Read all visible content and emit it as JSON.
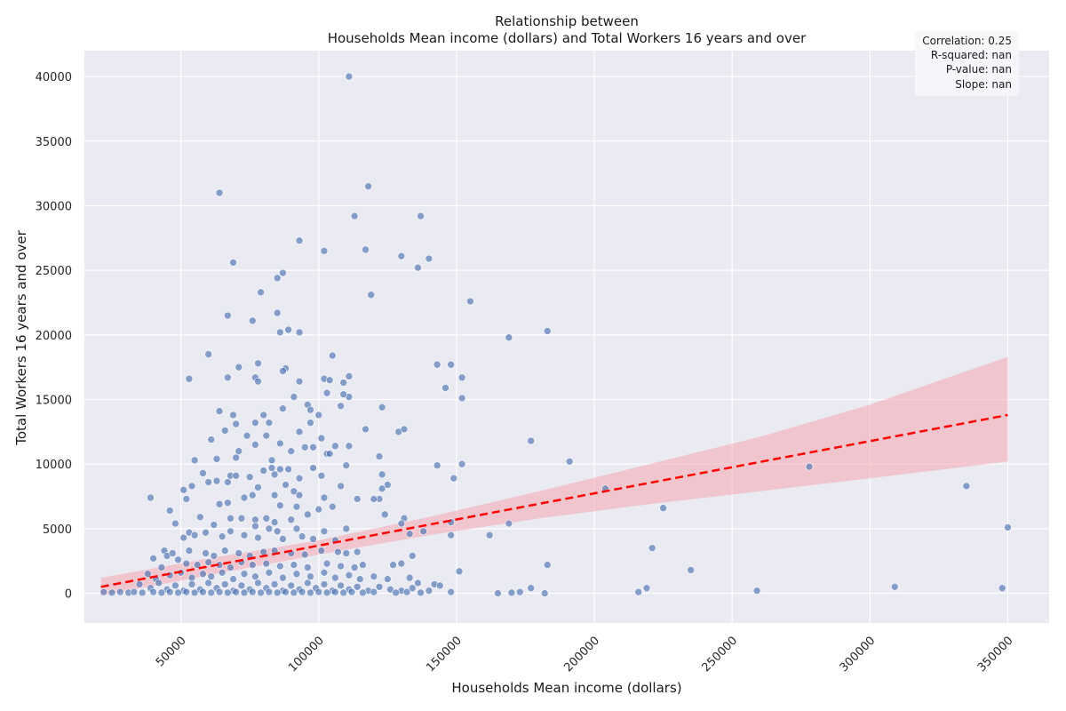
{
  "chart_data": {
    "type": "scatter",
    "title_line1": "Relationship between",
    "title_line2": "Households Mean income (dollars) and Total Workers 16 years and over",
    "xlabel": "Households Mean income (dollars)",
    "ylabel": "Total Workers 16 years and over",
    "xlim": [
      15000,
      365000
    ],
    "ylim": [
      -2300,
      42000
    ],
    "xticks": [
      50000,
      100000,
      150000,
      200000,
      250000,
      300000,
      350000
    ],
    "yticks": [
      0,
      5000,
      10000,
      15000,
      20000,
      25000,
      30000,
      35000,
      40000
    ],
    "grid": true,
    "stats": [
      "Correlation: 0.25",
      "R-squared: nan",
      "P-value: nan",
      "Slope: nan"
    ],
    "stats_position": "top-right",
    "colors": {
      "points": "#4c72b0",
      "regression_line": "#ff0000",
      "confidence_band": "#f4a6b1",
      "plot_background": "#eaeaf2",
      "grid": "#ffffff"
    },
    "regression": {
      "x": [
        21000,
        350000
      ],
      "y": [
        500,
        13800
      ]
    },
    "confidence_band": [
      {
        "x": 21000,
        "lo": -200,
        "hi": 1200
      },
      {
        "x": 60000,
        "lo": 1400,
        "hi": 2700
      },
      {
        "x": 100000,
        "lo": 3000,
        "hi": 4100
      },
      {
        "x": 140000,
        "lo": 4500,
        "hi": 5900
      },
      {
        "x": 180000,
        "lo": 5800,
        "hi": 7900
      },
      {
        "x": 220000,
        "lo": 6900,
        "hi": 10000
      },
      {
        "x": 260000,
        "lo": 7900,
        "hi": 12100
      },
      {
        "x": 300000,
        "lo": 8900,
        "hi": 14600
      },
      {
        "x": 350000,
        "lo": 10200,
        "hi": 18300
      }
    ],
    "points": [
      [
        111000,
        40000
      ],
      [
        64000,
        31000
      ],
      [
        118000,
        31500
      ],
      [
        113000,
        29200
      ],
      [
        137000,
        29200
      ],
      [
        93000,
        27300
      ],
      [
        69000,
        25600
      ],
      [
        102000,
        26500
      ],
      [
        117000,
        26600
      ],
      [
        130000,
        26100
      ],
      [
        140000,
        25900
      ],
      [
        136000,
        25200
      ],
      [
        87000,
        24800
      ],
      [
        85000,
        24400
      ],
      [
        79000,
        23300
      ],
      [
        119000,
        23100
      ],
      [
        155000,
        22600
      ],
      [
        85000,
        21700
      ],
      [
        67000,
        21500
      ],
      [
        76000,
        21100
      ],
      [
        89000,
        20400
      ],
      [
        86000,
        20200
      ],
      [
        93000,
        20200
      ],
      [
        169000,
        19800
      ],
      [
        183000,
        20300
      ],
      [
        60000,
        18500
      ],
      [
        105000,
        18400
      ],
      [
        78000,
        17800
      ],
      [
        71000,
        17500
      ],
      [
        88000,
        17400
      ],
      [
        87000,
        17200
      ],
      [
        143000,
        17700
      ],
      [
        148000,
        17700
      ],
      [
        152000,
        16700
      ],
      [
        53000,
        16600
      ],
      [
        67000,
        16700
      ],
      [
        77000,
        16700
      ],
      [
        102000,
        16600
      ],
      [
        104000,
        16500
      ],
      [
        111000,
        16800
      ],
      [
        109000,
        16300
      ],
      [
        78000,
        16400
      ],
      [
        146000,
        15900
      ],
      [
        93000,
        16400
      ],
      [
        111000,
        15200
      ],
      [
        103000,
        15500
      ],
      [
        91000,
        15200
      ],
      [
        152000,
        15100
      ],
      [
        109000,
        15400
      ],
      [
        96000,
        14600
      ],
      [
        108000,
        14500
      ],
      [
        123000,
        14400
      ],
      [
        64000,
        14100
      ],
      [
        87000,
        14300
      ],
      [
        97000,
        14200
      ],
      [
        69000,
        13800
      ],
      [
        80000,
        13800
      ],
      [
        100000,
        13800
      ],
      [
        82000,
        13200
      ],
      [
        70000,
        13100
      ],
      [
        77000,
        13200
      ],
      [
        97000,
        13200
      ],
      [
        66000,
        12600
      ],
      [
        74000,
        12200
      ],
      [
        81000,
        12200
      ],
      [
        93000,
        12500
      ],
      [
        117000,
        12700
      ],
      [
        129000,
        12500
      ],
      [
        131000,
        12700
      ],
      [
        177000,
        11800
      ],
      [
        61000,
        11900
      ],
      [
        77000,
        11500
      ],
      [
        86000,
        11600
      ],
      [
        95000,
        11300
      ],
      [
        98000,
        11300
      ],
      [
        101000,
        12000
      ],
      [
        106000,
        11400
      ],
      [
        111000,
        11400
      ],
      [
        71000,
        11000
      ],
      [
        90000,
        11000
      ],
      [
        103000,
        10800
      ],
      [
        104000,
        10800
      ],
      [
        63000,
        10400
      ],
      [
        70000,
        10500
      ],
      [
        55000,
        10300
      ],
      [
        83000,
        10300
      ],
      [
        122000,
        10600
      ],
      [
        191000,
        10200
      ],
      [
        143000,
        9900
      ],
      [
        152000,
        10000
      ],
      [
        110000,
        9900
      ],
      [
        86000,
        9600
      ],
      [
        89000,
        9600
      ],
      [
        83000,
        9700
      ],
      [
        98000,
        9700
      ],
      [
        58000,
        9300
      ],
      [
        80000,
        9500
      ],
      [
        101000,
        9100
      ],
      [
        75000,
        9000
      ],
      [
        68000,
        9100
      ],
      [
        70000,
        9100
      ],
      [
        123000,
        9200
      ],
      [
        149000,
        8900
      ],
      [
        93000,
        8900
      ],
      [
        84000,
        9200
      ],
      [
        60000,
        8600
      ],
      [
        63000,
        8700
      ],
      [
        54000,
        8300
      ],
      [
        51000,
        8000
      ],
      [
        67000,
        8600
      ],
      [
        78000,
        8200
      ],
      [
        88000,
        8400
      ],
      [
        91000,
        7900
      ],
      [
        108000,
        8300
      ],
      [
        125000,
        8400
      ],
      [
        123000,
        8100
      ],
      [
        204000,
        8100
      ],
      [
        278000,
        9800
      ],
      [
        335000,
        8300
      ],
      [
        39000,
        7400
      ],
      [
        52000,
        7300
      ],
      [
        73000,
        7400
      ],
      [
        76000,
        7600
      ],
      [
        84000,
        7600
      ],
      [
        93000,
        7600
      ],
      [
        102000,
        7400
      ],
      [
        114000,
        7300
      ],
      [
        122000,
        7300
      ],
      [
        67000,
        7000
      ],
      [
        64000,
        6900
      ],
      [
        86000,
        6800
      ],
      [
        92000,
        6700
      ],
      [
        100000,
        6500
      ],
      [
        105000,
        6700
      ],
      [
        46000,
        6400
      ],
      [
        120000,
        7300
      ],
      [
        225000,
        6600
      ],
      [
        57000,
        5900
      ],
      [
        77000,
        5700
      ],
      [
        81000,
        5800
      ],
      [
        90000,
        5700
      ],
      [
        84000,
        5500
      ],
      [
        68000,
        5800
      ],
      [
        72000,
        5800
      ],
      [
        96000,
        6100
      ],
      [
        124000,
        6100
      ],
      [
        131000,
        5800
      ],
      [
        130000,
        5400
      ],
      [
        169000,
        5400
      ],
      [
        148000,
        5500
      ],
      [
        48000,
        5400
      ],
      [
        62000,
        5300
      ],
      [
        77000,
        5200
      ],
      [
        82000,
        5000
      ],
      [
        85000,
        4800
      ],
      [
        92000,
        5000
      ],
      [
        102000,
        4800
      ],
      [
        110000,
        5000
      ],
      [
        133000,
        4600
      ],
      [
        138000,
        4800
      ],
      [
        148000,
        4500
      ],
      [
        162000,
        4500
      ],
      [
        53000,
        4700
      ],
      [
        55000,
        4500
      ],
      [
        59000,
        4700
      ],
      [
        65000,
        4400
      ],
      [
        68000,
        4800
      ],
      [
        73000,
        4500
      ],
      [
        78000,
        4300
      ],
      [
        87000,
        4200
      ],
      [
        94000,
        4400
      ],
      [
        98000,
        4200
      ],
      [
        106000,
        4100
      ],
      [
        51000,
        4300
      ],
      [
        44000,
        3300
      ],
      [
        45000,
        2900
      ],
      [
        47000,
        3100
      ],
      [
        53000,
        3300
      ],
      [
        59000,
        3100
      ],
      [
        62000,
        2900
      ],
      [
        66000,
        3300
      ],
      [
        71000,
        3100
      ],
      [
        75000,
        2900
      ],
      [
        80000,
        3200
      ],
      [
        84000,
        3300
      ],
      [
        90000,
        3100
      ],
      [
        95000,
        3000
      ],
      [
        101000,
        3300
      ],
      [
        107000,
        3200
      ],
      [
        110000,
        3100
      ],
      [
        114000,
        3200
      ],
      [
        134000,
        2900
      ],
      [
        40000,
        2700
      ],
      [
        43000,
        2000
      ],
      [
        49000,
        2600
      ],
      [
        52000,
        2300
      ],
      [
        56000,
        2200
      ],
      [
        60000,
        2400
      ],
      [
        64000,
        2200
      ],
      [
        68000,
        2000
      ],
      [
        72000,
        2400
      ],
      [
        76000,
        2200
      ],
      [
        81000,
        2300
      ],
      [
        86000,
        2100
      ],
      [
        91000,
        2200
      ],
      [
        96000,
        2000
      ],
      [
        103000,
        2300
      ],
      [
        108000,
        2100
      ],
      [
        113000,
        2000
      ],
      [
        116000,
        2200
      ],
      [
        127000,
        2200
      ],
      [
        130000,
        2300
      ],
      [
        151000,
        1700
      ],
      [
        183000,
        2200
      ],
      [
        221000,
        3500
      ],
      [
        235000,
        1800
      ],
      [
        38000,
        1500
      ],
      [
        41000,
        1100
      ],
      [
        46000,
        1400
      ],
      [
        50000,
        1600
      ],
      [
        54000,
        1200
      ],
      [
        58000,
        1500
      ],
      [
        61000,
        1300
      ],
      [
        65000,
        1600
      ],
      [
        69000,
        1100
      ],
      [
        73000,
        1500
      ],
      [
        77000,
        1300
      ],
      [
        82000,
        1600
      ],
      [
        87000,
        1200
      ],
      [
        92000,
        1500
      ],
      [
        97000,
        1300
      ],
      [
        102000,
        1600
      ],
      [
        106000,
        1200
      ],
      [
        111000,
        1400
      ],
      [
        115000,
        1100
      ],
      [
        120000,
        1300
      ],
      [
        125000,
        1100
      ],
      [
        133000,
        1200
      ],
      [
        136000,
        800
      ],
      [
        142000,
        700
      ],
      [
        144000,
        600
      ],
      [
        35000,
        700
      ],
      [
        39000,
        400
      ],
      [
        42000,
        800
      ],
      [
        45000,
        300
      ],
      [
        48000,
        600
      ],
      [
        51000,
        200
      ],
      [
        54000,
        700
      ],
      [
        57000,
        300
      ],
      [
        60000,
        800
      ],
      [
        63000,
        400
      ],
      [
        66000,
        700
      ],
      [
        69000,
        200
      ],
      [
        72000,
        600
      ],
      [
        75000,
        300
      ],
      [
        78000,
        800
      ],
      [
        81000,
        400
      ],
      [
        84000,
        700
      ],
      [
        87000,
        200
      ],
      [
        90000,
        600
      ],
      [
        93000,
        300
      ],
      [
        96000,
        800
      ],
      [
        99000,
        400
      ],
      [
        102000,
        700
      ],
      [
        105000,
        200
      ],
      [
        108000,
        600
      ],
      [
        111000,
        300
      ],
      [
        114000,
        500
      ],
      [
        118000,
        200
      ],
      [
        122000,
        500
      ],
      [
        126000,
        300
      ],
      [
        130000,
        200
      ],
      [
        134000,
        400
      ],
      [
        140000,
        200
      ],
      [
        22000,
        100
      ],
      [
        25000,
        50
      ],
      [
        28000,
        100
      ],
      [
        31000,
        50
      ],
      [
        33000,
        100
      ],
      [
        36000,
        50
      ],
      [
        40000,
        100
      ],
      [
        43000,
        50
      ],
      [
        46000,
        100
      ],
      [
        49000,
        50
      ],
      [
        52000,
        100
      ],
      [
        55000,
        50
      ],
      [
        58000,
        100
      ],
      [
        61000,
        50
      ],
      [
        64000,
        100
      ],
      [
        67000,
        50
      ],
      [
        70000,
        100
      ],
      [
        73000,
        50
      ],
      [
        76000,
        100
      ],
      [
        79000,
        50
      ],
      [
        82000,
        100
      ],
      [
        85000,
        50
      ],
      [
        88000,
        100
      ],
      [
        91000,
        50
      ],
      [
        94000,
        100
      ],
      [
        97000,
        50
      ],
      [
        100000,
        100
      ],
      [
        103000,
        50
      ],
      [
        106000,
        100
      ],
      [
        109000,
        50
      ],
      [
        112000,
        100
      ],
      [
        116000,
        50
      ],
      [
        120000,
        100
      ],
      [
        128000,
        50
      ],
      [
        132000,
        100
      ],
      [
        137000,
        50
      ],
      [
        148000,
        100
      ],
      [
        165000,
        0
      ],
      [
        170000,
        50
      ],
      [
        173000,
        100
      ],
      [
        177000,
        400
      ],
      [
        182000,
        0
      ],
      [
        216000,
        100
      ],
      [
        219000,
        400
      ],
      [
        259000,
        200
      ],
      [
        309000,
        500
      ],
      [
        348000,
        400
      ],
      [
        350000,
        5100
      ]
    ]
  }
}
